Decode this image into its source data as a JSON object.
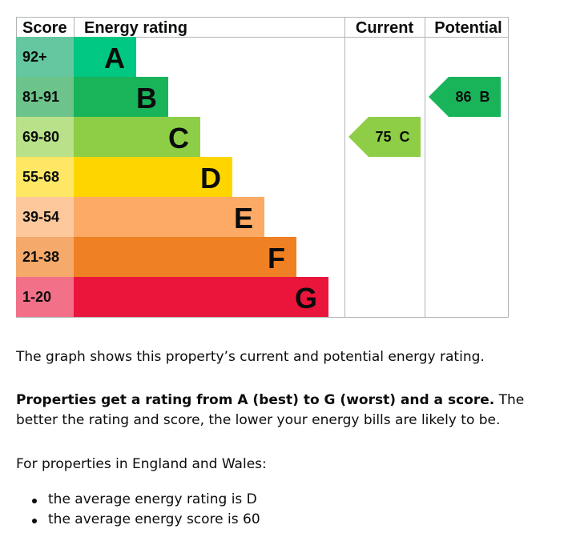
{
  "chart_data": {
    "type": "bar",
    "headers": {
      "score": "Score",
      "rating": "Energy rating",
      "current": "Current",
      "potential": "Potential"
    },
    "bands": [
      {
        "letter": "A",
        "range": "92+",
        "color": "#00c781",
        "score_color": "#64c7a0"
      },
      {
        "letter": "B",
        "range": "81-91",
        "color": "#19b459",
        "score_color": "#6cc48b"
      },
      {
        "letter": "C",
        "range": "69-80",
        "color": "#8dce46",
        "score_color": "#b8e189"
      },
      {
        "letter": "D",
        "range": "55-68",
        "color": "#ffd500",
        "score_color": "#ffe766"
      },
      {
        "letter": "E",
        "range": "39-54",
        "color": "#fcaa65",
        "score_color": "#fdc99c"
      },
      {
        "letter": "F",
        "range": "21-38",
        "color": "#ef8023",
        "score_color": "#f5a96b"
      },
      {
        "letter": "G",
        "range": "1-20",
        "color": "#e9153b",
        "score_color": "#f27188"
      }
    ],
    "current": {
      "score": 75,
      "letter": "C",
      "color": "#8dce46"
    },
    "potential": {
      "score": 86,
      "letter": "B",
      "color": "#19b459"
    }
  },
  "text": {
    "intro": "The graph shows this property’s current and potential energy rating.",
    "rating_bold": "Properties get a rating from A (best) to G (worst) and a score.",
    "rating_rest": " The better the rating and score, the lower your energy bills are likely to be.",
    "average_intro": "For properties in England and Wales:",
    "average_items": [
      "the average energy rating is D",
      "the average energy score is 60"
    ]
  }
}
